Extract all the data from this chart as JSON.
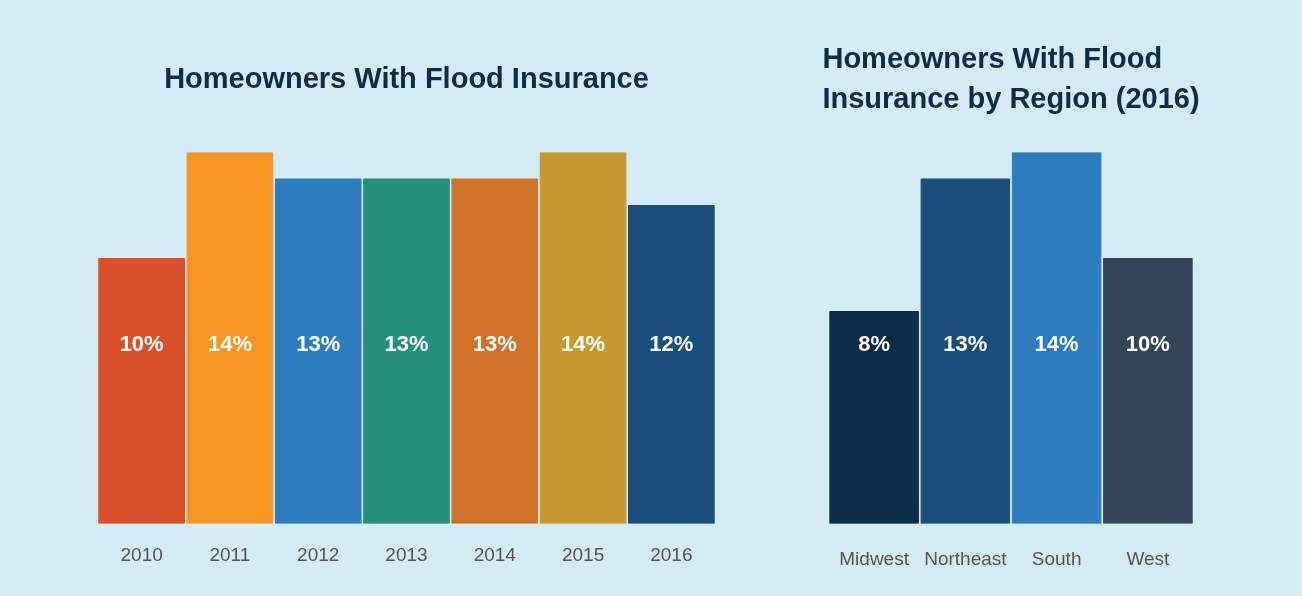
{
  "chart_data": [
    {
      "type": "bar",
      "title": "Homeowners With Flood Insurance",
      "categories": [
        "2010",
        "2011",
        "2012",
        "2013",
        "2014",
        "2015",
        "2016"
      ],
      "values": [
        10,
        14,
        13,
        13,
        13,
        14,
        12
      ],
      "value_labels": [
        "10%",
        "14%",
        "13%",
        "13%",
        "13%",
        "14%",
        "12%"
      ],
      "colors": [
        "#d9502a",
        "#f59622",
        "#2f7dc1",
        "#24907d",
        "#cd7228",
        "#c6992d",
        "#1a4e7b"
      ]
    },
    {
      "type": "bar",
      "title": "Homeowners With Flood\nInsurance by Region (2016)",
      "categories": [
        "Midwest",
        "Northeast",
        "South",
        "West"
      ],
      "values": [
        8,
        13,
        14,
        10
      ],
      "value_labels": [
        "8%",
        "13%",
        "14%",
        "10%"
      ],
      "colors": [
        "#0b2b48",
        "#1a4e7b",
        "#2f7dc1",
        "#33445b"
      ]
    }
  ]
}
